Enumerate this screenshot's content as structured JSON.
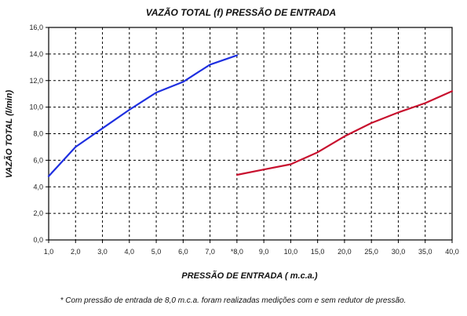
{
  "chart_data": {
    "type": "line",
    "title": "VAZÃO TOTAL (f) PRESSÃO DE ENTRADA",
    "xlabel": "PRESSÃO DE ENTRADA ( m.c.a.)",
    "ylabel": "VAZÃO TOTAL (l/min)",
    "categories": [
      "1,0",
      "2,0",
      "3,0",
      "4,0",
      "5,0",
      "6,0",
      "7,0",
      "*8,0",
      "9,0",
      "10,0",
      "15,0",
      "20,0",
      "25,0",
      "30,0",
      "35,0",
      "40,0"
    ],
    "y_ticks": [
      "0,0",
      "2,0",
      "4,0",
      "6,0",
      "8,0",
      "10,0",
      "12,0",
      "14,0",
      "16,0"
    ],
    "ylim": [
      0,
      16
    ],
    "grid": true,
    "series": [
      {
        "color": "#1e2fe0",
        "x": [
          "1,0",
          "2,0",
          "3,0",
          "4,0",
          "5,0",
          "6,0",
          "7,0",
          "*8,0"
        ],
        "values": [
          4.8,
          7.0,
          8.4,
          9.8,
          11.1,
          11.9,
          13.2,
          13.9
        ]
      },
      {
        "color": "#c8102e",
        "x": [
          "*8,0",
          "9,0",
          "10,0",
          "15,0",
          "20,0",
          "25,0",
          "30,0",
          "35,0",
          "40,0"
        ],
        "values": [
          4.9,
          5.3,
          5.7,
          6.6,
          7.8,
          8.8,
          9.6,
          10.3,
          11.2
        ]
      }
    ],
    "footnote": "* Com pressão de entrada de 8,0 m.c.a. foram realizadas medições com e sem redutor de pressão."
  }
}
